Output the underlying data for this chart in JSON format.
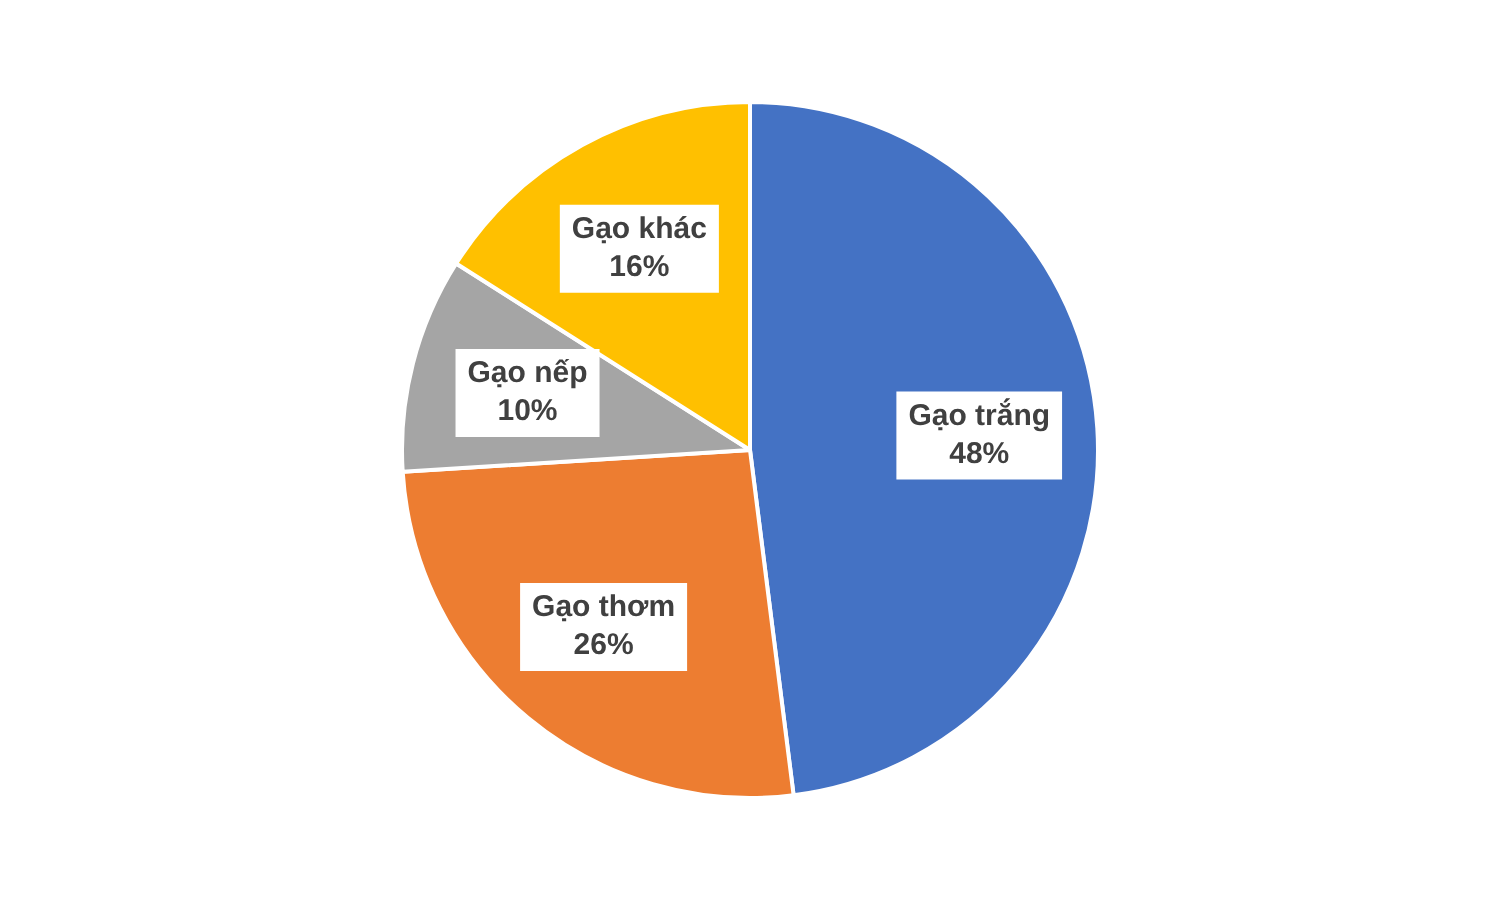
{
  "chart_data": {
    "type": "pie",
    "categories": [
      "Gạo trắng",
      "Gạo thơm",
      "Gạo nếp",
      "Gạo khác"
    ],
    "values": [
      48,
      26,
      10,
      16
    ],
    "colors": [
      "#4472c4",
      "#ed7d31",
      "#a5a5a5",
      "#ffc000"
    ],
    "value_labels": [
      "48%",
      "26%",
      "10%",
      "16%"
    ],
    "legend": false
  }
}
